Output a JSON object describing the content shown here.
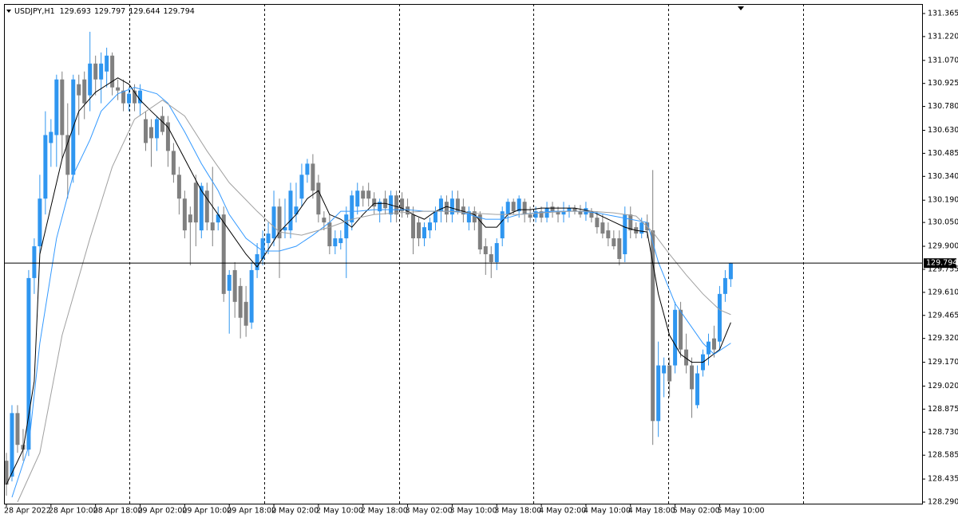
{
  "chart_data": {
    "type": "candlestick",
    "title": "USDJPY,H1",
    "up_color": "#2f96f0",
    "down_color": "#808080",
    "ylim": [
      128.28,
      131.425
    ],
    "yticks": [
      131.365,
      {
        "value": 131.22,
        "label": "131.220"
      },
      {
        "value": 131.07,
        "label": "131.070"
      },
      130.925,
      {
        "value": 130.78,
        "label": "130.780"
      },
      {
        "value": 130.63,
        "label": "130.630"
      },
      130.485,
      {
        "value": 130.34,
        "label": "130.340"
      },
      {
        "value": 130.19,
        "label": "130.190"
      },
      {
        "value": 130.05,
        "label": "130.050"
      },
      {
        "value": 129.9,
        "label": "129.900"
      },
      129.755,
      {
        "value": 129.61,
        "label": "129.610"
      },
      129.465,
      {
        "value": 129.32,
        "label": "129.320"
      },
      {
        "value": 129.17,
        "label": "129.170"
      },
      {
        "value": 129.02,
        "label": "129.020"
      },
      128.875,
      {
        "value": 128.73,
        "label": "128.730"
      },
      128.585,
      128.435,
      {
        "value": 128.29,
        "label": "128.290"
      }
    ],
    "categories": [
      "28 Apr 2022",
      null,
      null,
      null,
      null,
      null,
      null,
      null,
      "28 Apr 10:00",
      null,
      null,
      null,
      null,
      null,
      null,
      null,
      "28 Apr 18:00",
      null,
      null,
      null,
      null,
      null,
      null,
      null,
      "29 Apr 02:00",
      null,
      null,
      null,
      null,
      null,
      null,
      null,
      "29 Apr 10:00",
      null,
      null,
      null,
      null,
      null,
      null,
      null,
      "29 Apr 18:00",
      null,
      null,
      null,
      null,
      null,
      null,
      null,
      "2 May 02:00",
      null,
      null,
      null,
      null,
      null,
      null,
      null,
      "2 May 10:00",
      null,
      null,
      null,
      null,
      null,
      null,
      null,
      "2 May 18:00",
      null,
      null,
      null,
      null,
      null,
      null,
      null,
      "3 May 02:00",
      null,
      null,
      null,
      null,
      null,
      null,
      null,
      "3 May 10:00",
      null,
      null,
      null,
      null,
      null,
      null,
      null,
      "3 May 18:00",
      null,
      null,
      null,
      null,
      null,
      null,
      null,
      "4 May 02:00",
      null,
      null,
      null,
      null,
      null,
      null,
      null,
      "4 May 10:00",
      null,
      null,
      null,
      null,
      null,
      null,
      null,
      "4 May 18:00",
      null,
      null,
      null,
      null,
      null,
      null,
      null,
      "5 May 02:00",
      null,
      null,
      null,
      null,
      null,
      null,
      null,
      "5 May 10:00",
      null,
      null
    ],
    "open": [
      128.55,
      128.45,
      128.85,
      128.65,
      128.62,
      129.7,
      129.9,
      130.2,
      130.55,
      130.6,
      130.95,
      130.6,
      130.35,
      130.92,
      130.95,
      130.85,
      131.05,
      130.95,
      131.0,
      131.1,
      130.9,
      130.88,
      130.8,
      130.88,
      130.8,
      130.7,
      130.65,
      130.58,
      130.72,
      130.68,
      130.5,
      130.35,
      130.2,
      130.1,
      130.3,
      130.0,
      130.25,
      130.05,
      130.05,
      130.1,
      129.62,
      129.75,
      129.65,
      129.55,
      129.42,
      129.75,
      129.82,
      129.92,
      129.95,
      130.15,
      130.0,
      130.0,
      130.1,
      130.2,
      130.35,
      130.42,
      130.3,
      130.08,
      130.05,
      129.9,
      129.92,
      129.95,
      130.05,
      130.15,
      130.25,
      130.25,
      130.2,
      130.12,
      130.2,
      130.1,
      130.22,
      130.2,
      130.15,
      130.1,
      130.05,
      129.95,
      130.0,
      130.05,
      130.12,
      130.18,
      130.1,
      130.2,
      130.15,
      130.05,
      130.12,
      130.1,
      129.9,
      129.85,
      129.8,
      129.95,
      130.1,
      130.18,
      130.12,
      130.18,
      130.1,
      130.08,
      130.12,
      130.08,
      130.15,
      130.12,
      130.1,
      130.12,
      130.14,
      130.12,
      130.1,
      130.12,
      130.08,
      130.05,
      130.0,
      129.95,
      129.95,
      129.85,
      130.1,
      130.02,
      129.98,
      130.05,
      130.0,
      128.8,
      129.1,
      129.15,
      129.15,
      129.5,
      129.25,
      129.15,
      128.9,
      129.12,
      129.22,
      129.32,
      129.3,
      129.6,
      129.693
    ],
    "high": [
      128.6,
      128.9,
      128.9,
      128.75,
      129.75,
      129.95,
      130.35,
      130.75,
      130.7,
      130.98,
      131.0,
      130.8,
      130.98,
      130.98,
      131.0,
      131.25,
      131.1,
      131.12,
      131.15,
      131.12,
      130.95,
      130.95,
      130.9,
      130.92,
      130.92,
      130.75,
      130.7,
      130.72,
      130.78,
      130.72,
      130.55,
      130.4,
      130.25,
      130.15,
      130.35,
      130.3,
      130.3,
      130.4,
      130.15,
      130.15,
      129.75,
      129.8,
      129.7,
      129.65,
      129.8,
      129.92,
      130.0,
      130.05,
      130.25,
      130.2,
      130.2,
      130.3,
      130.3,
      130.42,
      130.45,
      130.48,
      130.35,
      130.12,
      130.1,
      130.0,
      130.0,
      130.15,
      130.25,
      130.3,
      130.28,
      130.3,
      130.24,
      130.2,
      130.25,
      130.25,
      130.25,
      130.24,
      130.2,
      130.15,
      130.08,
      130.05,
      130.08,
      130.15,
      130.22,
      130.22,
      130.25,
      130.25,
      130.2,
      130.15,
      130.15,
      130.12,
      129.95,
      129.9,
      129.95,
      130.15,
      130.2,
      130.2,
      130.22,
      130.2,
      130.15,
      130.15,
      130.15,
      130.18,
      130.18,
      130.15,
      130.18,
      130.16,
      130.16,
      130.16,
      130.18,
      130.14,
      130.12,
      130.1,
      130.05,
      130.0,
      130.0,
      130.15,
      130.15,
      130.05,
      130.08,
      130.1,
      130.38,
      129.3,
      129.2,
      129.2,
      129.55,
      129.55,
      129.35,
      129.2,
      129.15,
      129.25,
      129.35,
      129.4,
      129.65,
      129.75,
      129.797
    ],
    "low": [
      128.33,
      128.42,
      128.6,
      128.55,
      128.58,
      129.6,
      129.85,
      130.1,
      130.4,
      130.4,
      130.45,
      130.2,
      130.3,
      130.6,
      130.7,
      130.75,
      130.85,
      130.8,
      130.9,
      130.85,
      130.82,
      130.75,
      130.75,
      130.75,
      130.72,
      130.5,
      130.4,
      130.5,
      130.6,
      130.4,
      130.3,
      130.1,
      129.95,
      129.78,
      129.9,
      129.95,
      130.0,
      129.9,
      130.0,
      129.55,
      129.35,
      129.45,
      129.32,
      129.33,
      129.38,
      129.7,
      129.78,
      129.85,
      129.9,
      129.7,
      129.95,
      129.95,
      130.05,
      130.15,
      130.3,
      130.2,
      130.05,
      130.0,
      129.85,
      129.85,
      129.88,
      129.7,
      130.0,
      130.1,
      130.15,
      130.15,
      130.1,
      130.05,
      130.1,
      130.05,
      130.05,
      130.08,
      130.08,
      129.85,
      129.9,
      129.9,
      129.95,
      130.0,
      130.05,
      130.05,
      130.05,
      130.1,
      130.05,
      130.0,
      130.0,
      129.85,
      129.72,
      129.7,
      129.75,
      129.9,
      130.05,
      130.1,
      130.08,
      130.05,
      130.05,
      130.05,
      130.05,
      130.05,
      130.08,
      130.05,
      130.05,
      130.08,
      130.1,
      130.08,
      130.06,
      130.05,
      129.98,
      129.95,
      129.9,
      129.88,
      129.78,
      129.8,
      129.95,
      129.95,
      129.95,
      129.95,
      128.65,
      128.7,
      128.95,
      128.95,
      129.1,
      129.2,
      129.1,
      128.82,
      128.88,
      129.08,
      129.15,
      129.2,
      129.25,
      129.55,
      129.644
    ],
    "close": [
      128.4,
      128.85,
      128.65,
      128.62,
      129.7,
      129.9,
      130.2,
      130.6,
      130.62,
      130.95,
      130.6,
      130.35,
      130.95,
      130.85,
      130.8,
      131.05,
      130.95,
      131.05,
      131.1,
      130.9,
      130.88,
      130.8,
      130.86,
      130.8,
      130.88,
      130.55,
      130.58,
      130.7,
      130.62,
      130.5,
      130.35,
      130.2,
      130.0,
      130.05,
      130.05,
      130.28,
      130.05,
      130.0,
      130.1,
      129.6,
      129.72,
      129.55,
      129.45,
      129.4,
      129.75,
      129.85,
      129.95,
      129.98,
      130.15,
      129.95,
      130.02,
      130.25,
      130.15,
      130.35,
      130.42,
      130.25,
      130.1,
      130.05,
      129.9,
      129.95,
      129.95,
      130.1,
      130.22,
      130.25,
      130.2,
      130.2,
      130.15,
      130.18,
      130.14,
      130.22,
      130.1,
      130.12,
      130.1,
      129.95,
      129.95,
      130.02,
      130.05,
      130.12,
      130.2,
      130.1,
      130.2,
      130.12,
      130.1,
      130.12,
      130.05,
      129.88,
      129.85,
      129.8,
      129.92,
      130.12,
      130.18,
      130.12,
      130.2,
      130.1,
      130.08,
      130.12,
      130.08,
      130.14,
      130.12,
      130.1,
      130.12,
      130.14,
      130.12,
      130.1,
      130.14,
      130.08,
      130.02,
      129.98,
      129.95,
      129.9,
      129.82,
      130.1,
      130.0,
      129.98,
      130.05,
      130.0,
      128.8,
      129.15,
      129.15,
      129.05,
      129.5,
      129.25,
      129.15,
      129.0,
      129.1,
      129.22,
      129.3,
      129.25,
      129.6,
      129.7,
      129.794
    ],
    "lines": [
      {
        "color": "#000000",
        "x": [
          0,
          3,
          5,
          6,
          8,
          10,
          13,
          16,
          20,
          22,
          24,
          26,
          29,
          32,
          35,
          38,
          40,
          43,
          45,
          47,
          49,
          52,
          54,
          56,
          58,
          60,
          62,
          64,
          66,
          68,
          71,
          73,
          75,
          77,
          79,
          82,
          84,
          86,
          88,
          90,
          92,
          94,
          96,
          99,
          102,
          105,
          108,
          111,
          113,
          115,
          117,
          119,
          121,
          123,
          125,
          128,
          130
        ],
        "values": [
          128.4,
          128.62,
          129.05,
          129.85,
          130.15,
          130.45,
          130.75,
          130.87,
          130.96,
          130.92,
          130.82,
          130.75,
          130.65,
          130.45,
          130.25,
          130.1,
          130.0,
          129.85,
          129.77,
          129.88,
          129.99,
          130.1,
          130.2,
          130.25,
          130.1,
          130.07,
          130.02,
          130.1,
          130.17,
          130.17,
          130.14,
          130.1,
          130.07,
          130.12,
          130.15,
          130.12,
          130.1,
          130.02,
          130.02,
          130.1,
          130.13,
          130.13,
          130.14,
          130.14,
          130.14,
          130.12,
          130.07,
          130.02,
          130.0,
          129.99,
          129.6,
          129.34,
          129.22,
          129.17,
          129.17,
          129.25,
          129.42
        ]
      },
      {
        "color": "#3399ff",
        "x": [
          1,
          4,
          6,
          9,
          12,
          15,
          17,
          20,
          23,
          27,
          29,
          32,
          35,
          38,
          40,
          43,
          46,
          49,
          52,
          55,
          58,
          60,
          63,
          66,
          69,
          72,
          75,
          78,
          81,
          83,
          86,
          89,
          92,
          95,
          98,
          101,
          103,
          106,
          109,
          112,
          115,
          117,
          120,
          123,
          125,
          127,
          130
        ],
        "values": [
          128.32,
          128.64,
          129.29,
          129.95,
          130.35,
          130.57,
          130.75,
          130.86,
          130.9,
          130.86,
          130.8,
          130.62,
          130.42,
          130.25,
          130.1,
          129.95,
          129.87,
          129.87,
          129.9,
          129.97,
          130.05,
          130.12,
          130.12,
          130.13,
          130.13,
          130.13,
          130.12,
          130.12,
          130.12,
          130.1,
          130.07,
          130.07,
          130.1,
          130.11,
          130.12,
          130.12,
          130.12,
          130.11,
          130.09,
          130.07,
          130.05,
          129.8,
          129.54,
          129.39,
          129.29,
          129.22,
          129.29
        ]
      },
      {
        "color": "#a0a0a0",
        "x": [
          2,
          6,
          10,
          15,
          19,
          23,
          28,
          32,
          36,
          40,
          45,
          49,
          53,
          58,
          62,
          66,
          70,
          75,
          79,
          83,
          88,
          92,
          96,
          101,
          105,
          109,
          113,
          116,
          119,
          122,
          125,
          128,
          130
        ],
        "values": [
          128.29,
          128.6,
          129.34,
          129.95,
          130.4,
          130.7,
          130.82,
          130.72,
          130.5,
          130.3,
          130.12,
          129.99,
          129.97,
          130.02,
          130.07,
          130.1,
          130.11,
          130.12,
          130.12,
          130.11,
          130.1,
          130.1,
          130.11,
          130.12,
          130.12,
          130.11,
          130.09,
          129.99,
          129.85,
          129.72,
          129.6,
          129.5,
          129.47
        ]
      }
    ]
  }
}
